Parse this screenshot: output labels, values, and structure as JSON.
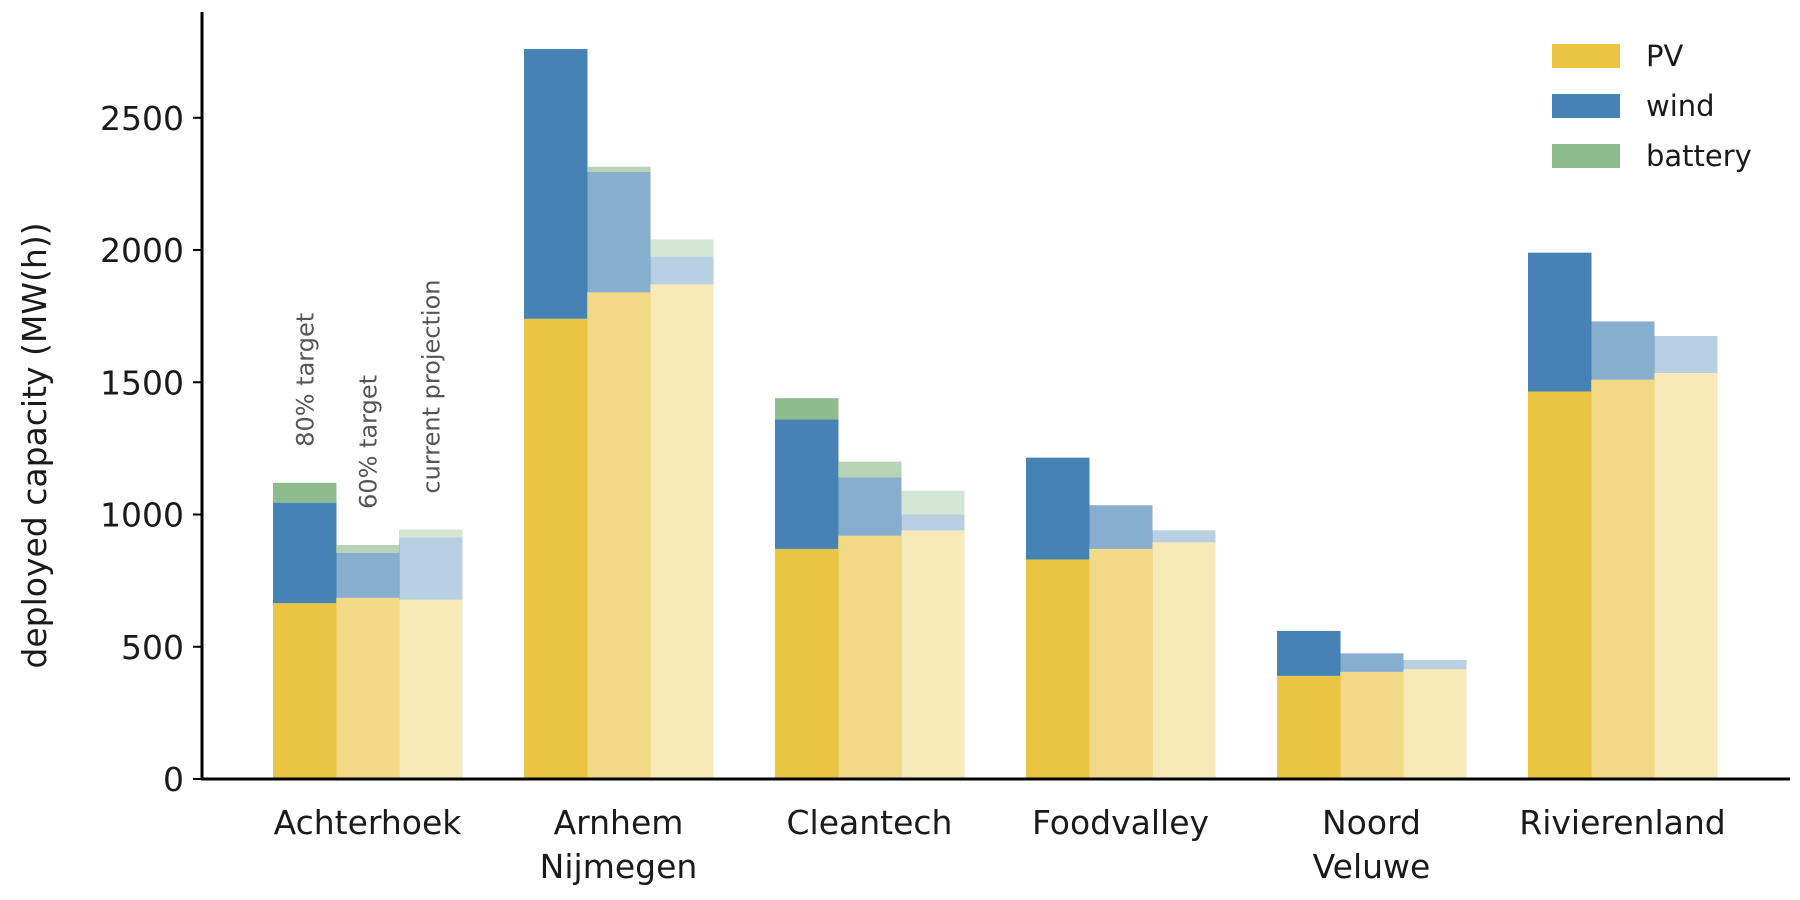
{
  "chart_data": {
    "type": "bar",
    "stacked": true,
    "ylabel": "deployed capacity (MW(h))",
    "ylim": [
      0,
      2900
    ],
    "yticks": [
      0,
      500,
      1000,
      1500,
      2000,
      2500
    ],
    "grid": false,
    "legend_position": "top-right",
    "categories": [
      [
        "Achterhoek"
      ],
      [
        "Arnhem",
        "Nijmegen"
      ],
      [
        "Cleantech"
      ],
      [
        "Foodvalley"
      ],
      [
        "Noord",
        "Veluwe"
      ],
      [
        "Rivierenland"
      ]
    ],
    "scenarios": [
      {
        "name": "80% target",
        "opacity": 1.0
      },
      {
        "name": "60% target",
        "opacity": 0.65
      },
      {
        "name": "current projection",
        "opacity": 0.38
      }
    ],
    "series": [
      {
        "name": "PV",
        "color": "#ebc444",
        "values": [
          [
            665,
            685,
            678
          ],
          [
            1740,
            1840,
            1870
          ],
          [
            870,
            920,
            940
          ],
          [
            830,
            870,
            895
          ],
          [
            390,
            405,
            415
          ],
          [
            1465,
            1510,
            1535
          ]
        ]
      },
      {
        "name": "wind",
        "color": "#4682b4",
        "values": [
          [
            380,
            170,
            235
          ],
          [
            1020,
            455,
            105
          ],
          [
            490,
            220,
            60
          ],
          [
            385,
            165,
            45
          ],
          [
            170,
            70,
            35
          ],
          [
            525,
            220,
            140
          ]
        ]
      },
      {
        "name": "battery",
        "color": "#8fbc8f",
        "values": [
          [
            75,
            30,
            30
          ],
          [
            0,
            20,
            65
          ],
          [
            80,
            60,
            90
          ],
          [
            0,
            0,
            0
          ],
          [
            0,
            0,
            0
          ],
          [
            0,
            0,
            0
          ]
        ]
      }
    ]
  }
}
